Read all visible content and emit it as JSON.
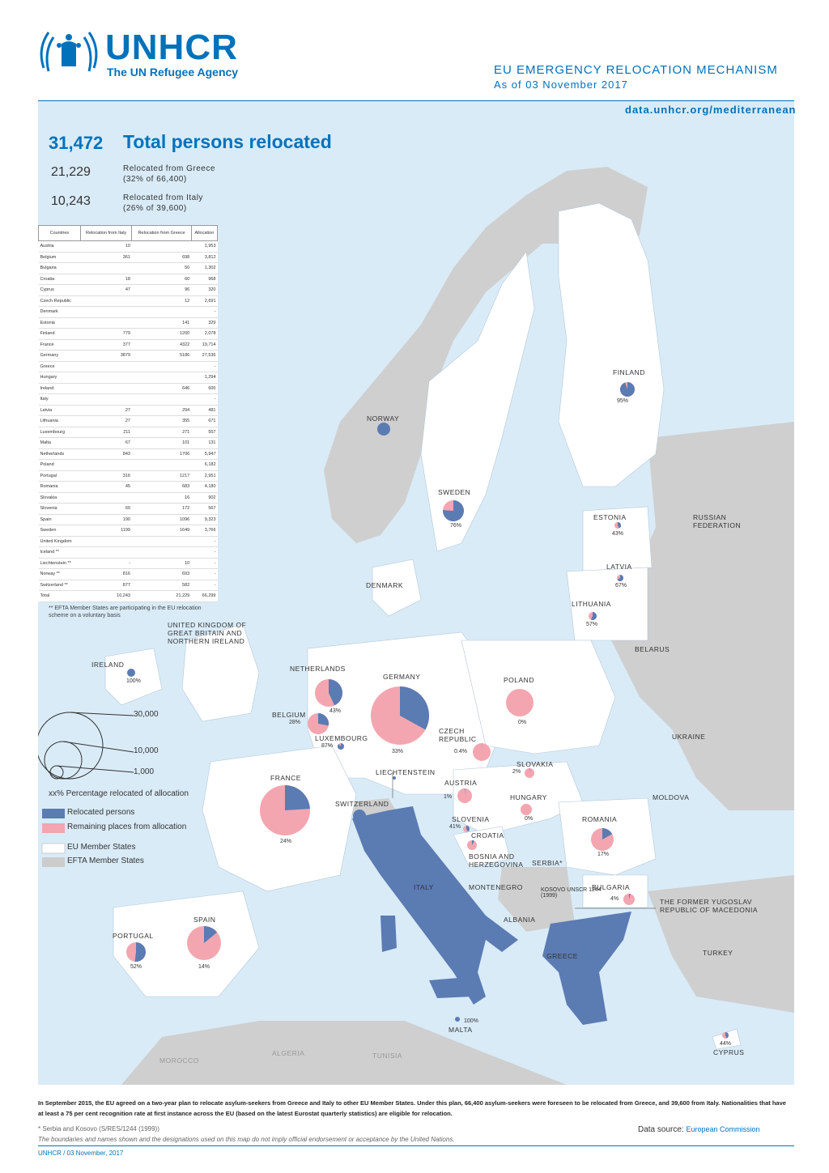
{
  "header": {
    "logo_text": "UNHCR",
    "logo_subtitle": "The UN Refugee Agency",
    "title": "EU EMERGENCY RELOCATION MECHANISM",
    "date": "As of 03 November 2017",
    "link": "data.unhcr.org/mediterranean"
  },
  "summary": {
    "total_value": "31,472",
    "total_label": "Total persons relocated",
    "greece_value": "21,229",
    "greece_label_1": "Relocated from Greece",
    "greece_label_2": "(32% of 66,400)",
    "italy_value": "10,243",
    "italy_label_1": "Relocated from Italy",
    "italy_label_2": "(26% of 39,600)"
  },
  "table": {
    "headers": [
      "Countries",
      "Relocation from Italy",
      "Relocation from Greece",
      "Allocation"
    ],
    "rows": [
      [
        "Austria",
        "10",
        "",
        "1,953"
      ],
      [
        "Belgium",
        "361",
        "698",
        "3,812"
      ],
      [
        "Bulgaria",
        "",
        "50",
        "1,302"
      ],
      [
        "Croatia",
        "18",
        "60",
        "968"
      ],
      [
        "Cyprus",
        "47",
        "96",
        "320"
      ],
      [
        "Czech Republic",
        "",
        "12",
        "2,691"
      ],
      [
        "Denmark",
        "",
        "",
        "-"
      ],
      [
        "Estonia",
        "",
        "141",
        "329"
      ],
      [
        "Finland",
        "779",
        "1200",
        "2,078"
      ],
      [
        "France",
        "377",
        "4322",
        "19,714"
      ],
      [
        "Germany",
        "3879",
        "5186",
        "27,536"
      ],
      [
        "Greece",
        "",
        "",
        "-"
      ],
      [
        "Hungary",
        "",
        "",
        "1,294"
      ],
      [
        "Ireland",
        "",
        "646",
        "600"
      ],
      [
        "Italy",
        "",
        "",
        "-"
      ],
      [
        "Latvia",
        "27",
        "294",
        "481"
      ],
      [
        "Lithuania",
        "27",
        "355",
        "671"
      ],
      [
        "Luxembourg",
        "211",
        "271",
        "557"
      ],
      [
        "Malta",
        "67",
        "101",
        "131"
      ],
      [
        "Netherlands",
        "843",
        "1706",
        "5,947"
      ],
      [
        "Poland",
        "",
        "",
        "6,182"
      ],
      [
        "Portugal",
        "316",
        "1217",
        "2,951"
      ],
      [
        "Romania",
        "45",
        "683",
        "4,180"
      ],
      [
        "Slovakia",
        "",
        "16",
        "902"
      ],
      [
        "Slovenia",
        "60",
        "172",
        "567"
      ],
      [
        "Spain",
        "190",
        "1096",
        "9,323"
      ],
      [
        "Sweden",
        "1199",
        "1649",
        "3,766"
      ],
      [
        "United Kingdom",
        "",
        "",
        "-"
      ],
      [
        "Iceland **",
        "",
        "",
        "-"
      ],
      [
        "Liechtenstein **",
        "-",
        "10",
        "-"
      ],
      [
        "Norway **",
        "816",
        "693",
        "-"
      ],
      [
        "Switzerland **",
        "877",
        "582",
        "-"
      ],
      [
        "Total",
        "10,243",
        "21,229",
        "66,299"
      ]
    ],
    "note": "** EFTA Member States are participating in the EU relocation scheme on a voluntary basis"
  },
  "map_labels": {
    "finland": "FINLAND",
    "finland_pct": "95%",
    "norway": "NORWAY",
    "sweden": "SWEDEN",
    "sweden_pct": "76%",
    "estonia": "ESTONIA",
    "estonia_pct": "43%",
    "latvia": "LATVIA",
    "latvia_pct": "67%",
    "lithuania": "LITHUANIA",
    "lithuania_pct": "57%",
    "russia": "RUSSIAN FEDERATION",
    "belarus": "BELARUS",
    "denmark": "DENMARK",
    "uk": "UNITED KINGDOM OF GREAT BRITAIN AND NORTHERN IRELAND",
    "ireland": "IRELAND",
    "ireland_pct": "100%",
    "netherlands": "NETHERLANDS",
    "netherlands_pct": "43%",
    "germany": "GERMANY",
    "germany_pct": "33%",
    "poland": "POLAND",
    "poland_pct": "0%",
    "belgium": "BELGIUM",
    "belgium_pct": "28%",
    "luxembourg": "LUXEMBOURG",
    "luxembourg_pct": "87%",
    "czech": "CZECH REPUBLIC",
    "czech_pct": "0.4%",
    "ukraine": "UKRAINE",
    "slovakia": "SLOVAKIA",
    "slovakia_pct": "2%",
    "liechtenstein": "LIECHTENSTEIN",
    "austria": "AUSTRIA",
    "austria_pct": "1%",
    "france": "FRANCE",
    "france_pct": "24%",
    "switzerland": "SWITZERLAND",
    "hungary": "HUNGARY",
    "hungary_pct": "0%",
    "moldova": "MOLDOVA",
    "slovenia": "SLOVENIA",
    "slovenia_pct": "41%",
    "croatia": "CROATIA",
    "romania": "ROMANIA",
    "romania_pct": "17%",
    "bosnia": "BOSNIA AND HERZEGOVINA",
    "serbia": "SERBIA*",
    "montenegro": "MONTENEGRO",
    "kosovo": "KOSOVO UNSCR 1244 (1999)",
    "bulgaria": "BULGARIA",
    "bulgaria_pct": "4%",
    "italy": "ITALY",
    "fyrom": "THE FORMER YUGOSLAV REPUBLIC OF MACEDONIA",
    "albania": "ALBANIA",
    "greece": "GREECE",
    "turkey": "TURKEY",
    "portugal": "PORTUGAL",
    "portugal_pct": "52%",
    "spain": "SPAIN",
    "spain_pct": "14%",
    "malta": "MALTA",
    "malta_pct": "100%",
    "cyprus": "CYPRUS",
    "cyprus_pct": "44%",
    "morocco": "MOROCCO",
    "algeria": "ALGERIA",
    "tunisia": "TUNISIA"
  },
  "legend": {
    "size_30000": "30,000",
    "size_10000": "10,000",
    "size_1000": "1,000",
    "pct_note": "xx% Percentage relocated of allocation",
    "relocated": "Relocated persons",
    "remaining": "Remaining places from allocation",
    "eu_states": "EU Member States",
    "efta_states": "EFTA Member States",
    "colors": {
      "relocated": "#5b7bb3",
      "remaining": "#f3a6b0",
      "eu": "#ffffff",
      "efta": "#cccccc",
      "sea": "#d9ebf7"
    }
  },
  "footer": {
    "text": "In September 2015, the EU agreed on a two-year plan to relocate asylum-seekers from Greece and Italy to other EU Member States. Under this plan, 66,400 asylum-seekers were foreseen to be relocated from Greece, and 39,600 from Italy. Nationalities that have at least a 75 per cent recognition rate at first instance across the EU (based on the latest Eurostat quarterly statistics) are eligible for relocation.",
    "serbia_note": "* Serbia and Kosovo (S/RES/1244 (1999))",
    "disclaimer": "The boundaries and names shown and the designations used on this map do not imply official endorsement or acceptance by the United Nations.",
    "datasource_label": "Data source:",
    "datasource_value": "European Commission",
    "credit": "UNHCR / 03 November, 2017"
  },
  "pies": [
    {
      "name": "finland",
      "fraction": 0.95
    },
    {
      "name": "norway",
      "fraction": 1.0
    },
    {
      "name": "sweden",
      "fraction": 0.76
    },
    {
      "name": "estonia",
      "fraction": 0.43
    },
    {
      "name": "latvia",
      "fraction": 0.67
    },
    {
      "name": "lithuania",
      "fraction": 0.57
    },
    {
      "name": "ireland",
      "fraction": 1.0
    },
    {
      "name": "netherlands",
      "fraction": 0.43
    },
    {
      "name": "germany",
      "fraction": 0.33
    },
    {
      "name": "poland",
      "fraction": 0.0
    },
    {
      "name": "belgium",
      "fraction": 0.28
    },
    {
      "name": "luxembourg",
      "fraction": 0.87
    },
    {
      "name": "czech",
      "fraction": 0.004
    },
    {
      "name": "slovakia",
      "fraction": 0.02
    },
    {
      "name": "liechtenstein",
      "fraction": 1.0
    },
    {
      "name": "austria",
      "fraction": 0.01
    },
    {
      "name": "france",
      "fraction": 0.24
    },
    {
      "name": "switzerland",
      "fraction": 1.0
    },
    {
      "name": "hungary",
      "fraction": 0.0
    },
    {
      "name": "slovenia",
      "fraction": 0.41
    },
    {
      "name": "croatia",
      "fraction": 0.08
    },
    {
      "name": "romania",
      "fraction": 0.17
    },
    {
      "name": "bulgaria",
      "fraction": 0.04
    },
    {
      "name": "portugal",
      "fraction": 0.52
    },
    {
      "name": "spain",
      "fraction": 0.14
    },
    {
      "name": "malta",
      "fraction": 1.0
    },
    {
      "name": "cyprus",
      "fraction": 0.44
    }
  ]
}
